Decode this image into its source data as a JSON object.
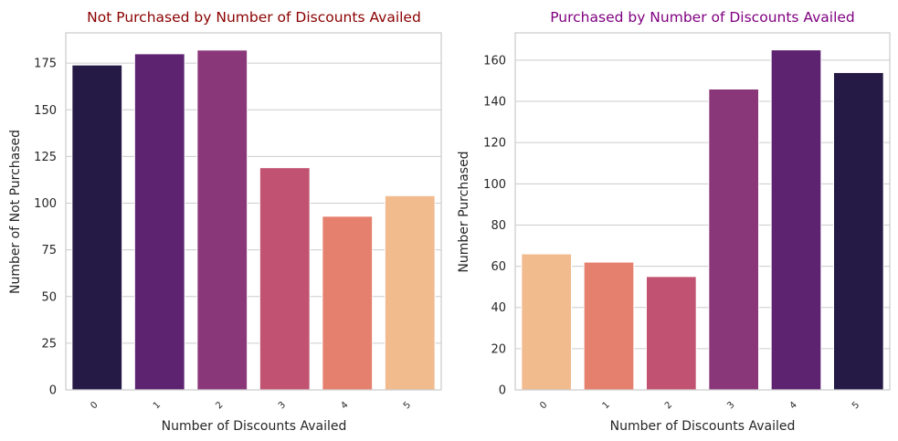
{
  "chart_data": [
    {
      "type": "bar",
      "title": "Not Purchased by Number of Discounts Availed",
      "title_color": "#8b0000",
      "xlabel": "Number of Discounts Availed",
      "ylabel": "Number of Not Purchased",
      "categories": [
        "0",
        "1",
        "2",
        "3",
        "4",
        "5"
      ],
      "values": [
        174,
        180,
        182,
        119,
        93,
        104
      ],
      "colors": [
        "#251a45",
        "#5d2270",
        "#8a377a",
        "#c15271",
        "#e57f6e",
        "#f1bb8e"
      ],
      "ylim": [
        0,
        191.2
      ],
      "yticks": [
        0,
        25,
        50,
        75,
        100,
        125,
        150,
        175
      ],
      "grid": true
    },
    {
      "type": "bar",
      "title": "Purchased by Number of Discounts Availed",
      "title_color": "#800080",
      "xlabel": "Number of Discounts Availed",
      "ylabel": "Number Purchased",
      "categories": [
        "0",
        "1",
        "2",
        "3",
        "4",
        "5"
      ],
      "values": [
        66,
        62,
        55,
        146,
        165,
        154
      ],
      "colors": [
        "#f1bb8e",
        "#e57f6e",
        "#c15271",
        "#8a377a",
        "#5d2270",
        "#251a45"
      ],
      "ylim": [
        0,
        173.25
      ],
      "yticks": [
        0,
        20,
        40,
        60,
        80,
        100,
        120,
        140,
        160
      ],
      "grid": true
    }
  ]
}
